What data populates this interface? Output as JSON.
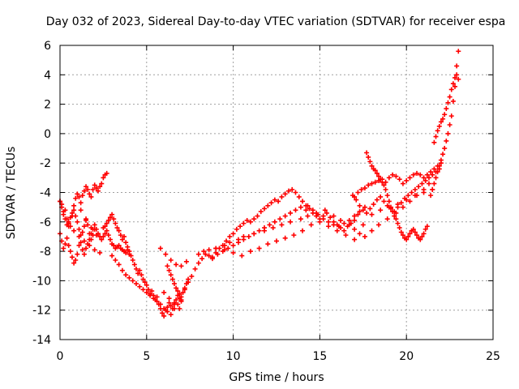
{
  "chart_data": {
    "type": "scatter",
    "title": "Day 032 of 2023, Sidereal Day-to-day VTEC variation (SDTVAR) for receiver espa",
    "xlabel": "GPS time / hours",
    "ylabel": "SDTVAR / TECUs",
    "xlim": [
      0,
      25
    ],
    "ylim": [
      -14,
      6
    ],
    "xticks": [
      0,
      5,
      10,
      15,
      20,
      25
    ],
    "xtick_labels": [
      "0",
      "5",
      "10",
      "15",
      "20",
      "25"
    ],
    "yticks": [
      -14,
      -12,
      -10,
      -8,
      -6,
      -4,
      -2,
      0,
      2,
      4,
      6
    ],
    "ytick_labels": [
      "-14",
      "-12",
      "-10",
      "-8",
      "-6",
      "-4",
      "-2",
      "0",
      "2",
      "4",
      "6"
    ],
    "grid": true,
    "marker": "+",
    "color": "#ff0000",
    "series": [
      {
        "name": "SDTVAR",
        "x": [
          0.0,
          0.1,
          0.2,
          0.3,
          0.4,
          0.5,
          0.6,
          0.7,
          0.8,
          0.9,
          1.0,
          1.1,
          1.2,
          1.3,
          1.4,
          1.5,
          1.6,
          1.7,
          1.8,
          1.9,
          2.0,
          2.1,
          2.2,
          2.3,
          2.4,
          2.5,
          2.6,
          2.7,
          0.0,
          0.1,
          0.2,
          0.3,
          0.4,
          0.5,
          0.6,
          0.7,
          0.8,
          0.9,
          1.0,
          1.1,
          1.2,
          1.3,
          1.4,
          1.5,
          1.6,
          1.7,
          1.8,
          1.9,
          2.0,
          2.1,
          2.2,
          2.3,
          2.4,
          2.5,
          2.6,
          2.7,
          2.8,
          2.9,
          3.0,
          3.1,
          3.2,
          3.3,
          3.4,
          3.5,
          3.6,
          3.7,
          3.8,
          3.9,
          4.0,
          0.0,
          0.1,
          0.2,
          0.3,
          0.4,
          0.5,
          0.6,
          0.7,
          0.8,
          0.9,
          1.0,
          1.1,
          1.2,
          1.3,
          1.4,
          1.5,
          1.6,
          1.7,
          1.8,
          1.9,
          2.0,
          2.5,
          2.6,
          2.7,
          2.8,
          2.9,
          3.0,
          3.1,
          3.2,
          3.3,
          3.4,
          3.5,
          3.6,
          3.7,
          3.8,
          3.9,
          4.0,
          4.1,
          4.2,
          4.3,
          4.4,
          4.5,
          4.6,
          4.7,
          4.8,
          4.9,
          5.0,
          5.1,
          5.2,
          5.3,
          5.4,
          5.5,
          5.6,
          5.7,
          5.8,
          5.9,
          6.0,
          6.1,
          6.2,
          6.3,
          6.4,
          6.5,
          6.6,
          6.7,
          6.8,
          6.9,
          7.0,
          7.1,
          7.2,
          7.3,
          7.4,
          3.0,
          3.2,
          3.4,
          3.6,
          3.8,
          4.0,
          4.2,
          4.4,
          4.6,
          4.8,
          5.0,
          5.2,
          5.4,
          5.6,
          5.8,
          6.0,
          6.2,
          6.4,
          6.6,
          6.8,
          7.0,
          6.2,
          6.3,
          6.4,
          6.5,
          6.6,
          6.7,
          6.8,
          6.9,
          7.0,
          7.2,
          7.4,
          7.6,
          7.8,
          8.0,
          8.2,
          8.4,
          8.6,
          8.8,
          9.0,
          9.2,
          9.4,
          9.6,
          9.8,
          10.0,
          10.2,
          10.4,
          10.6,
          10.8,
          11.0,
          11.2,
          11.4,
          11.6,
          11.8,
          12.0,
          12.2,
          12.4,
          12.6,
          12.8,
          13.0,
          13.2,
          13.4,
          13.6,
          13.8,
          14.0,
          14.2,
          14.4,
          14.6,
          14.8,
          15.0,
          15.2,
          15.4,
          15.6,
          15.8,
          16.0,
          16.2,
          16.4,
          16.6,
          16.8,
          17.0,
          17.2,
          8.0,
          8.3,
          8.6,
          9.0,
          9.5,
          10.0,
          10.5,
          11.0,
          11.5,
          12.0,
          12.5,
          13.0,
          13.5,
          14.0,
          14.5,
          15.0,
          15.5,
          16.0,
          16.5,
          17.0,
          17.5,
          18.0,
          18.5,
          19.0,
          19.5,
          20.0,
          20.5,
          21.0,
          21.5,
          17.0,
          17.2,
          17.4,
          17.6,
          17.8,
          18.0,
          18.2,
          18.4,
          18.6,
          18.8,
          19.0,
          19.2,
          19.4,
          19.6,
          19.8,
          20.0,
          20.2,
          20.4,
          20.6,
          20.8,
          21.0,
          21.2,
          21.4,
          21.6,
          21.8,
          22.0,
          16.9,
          17.1,
          17.3,
          17.5,
          17.7,
          17.9,
          18.1,
          18.3,
          18.5,
          18.7,
          18.9,
          19.1,
          19.3,
          19.5,
          19.7,
          19.9,
          20.1,
          20.3,
          20.5,
          20.7,
          20.9,
          21.1,
          21.3,
          21.5,
          21.7,
          21.9,
          17.7,
          17.8,
          17.9,
          18.0,
          18.1,
          18.2,
          18.3,
          18.4,
          18.5,
          18.6,
          18.7,
          18.8,
          18.9,
          19.0,
          19.1,
          19.2,
          19.3,
          19.4,
          19.5,
          19.6,
          19.7,
          19.8,
          19.9,
          20.0,
          20.1,
          20.2,
          20.3,
          20.4,
          20.5,
          20.6,
          20.7,
          20.8,
          20.9,
          21.0,
          21.1,
          21.2,
          21.4,
          21.5,
          21.6,
          21.7,
          21.8,
          21.9,
          22.0,
          22.1,
          22.2,
          22.3,
          22.4,
          22.5,
          22.6,
          22.7,
          22.8,
          22.9,
          23.0,
          21.6,
          21.7,
          21.8,
          21.9,
          22.0,
          22.1,
          22.2,
          22.3,
          22.4,
          22.5,
          22.6,
          22.7,
          22.8,
          22.9,
          23.0,
          9.0,
          9.5,
          9.8,
          10.3,
          10.6,
          11.2,
          11.8,
          12.3,
          12.8,
          13.3,
          13.9,
          14.3,
          14.8,
          15.3,
          15.8,
          16.2,
          16.7,
          17.0,
          17.3,
          17.6,
          18.0,
          18.4,
          18.9,
          19.4,
          19.8,
          20.2,
          20.6,
          21.0,
          21.3,
          14.3,
          14.6,
          14.9,
          15.2,
          15.5,
          15.8,
          16.1,
          16.4,
          16.7,
          17.0,
          17.3,
          17.6,
          8.8,
          9.1,
          9.4,
          9.7,
          10.0,
          10.3,
          10.6,
          10.9,
          11.2,
          11.5,
          11.8,
          12.1,
          12.4,
          12.7,
          13.0,
          13.3,
          13.6,
          13.9,
          14.2,
          1.2,
          1.5,
          1.8,
          2.1,
          0.5,
          0.8,
          1.1,
          1.4,
          1.7,
          2.0,
          2.3,
          5.8,
          6.1,
          6.4,
          6.7,
          7.0,
          7.3,
          6.0,
          6.3,
          6.6,
          6.9
        ],
        "y": [
          -4.6,
          -4.8,
          -5.3,
          -5.2,
          -5.8,
          -6.1,
          -6.3,
          -5.6,
          -4.9,
          -4.4,
          -4.1,
          -4.3,
          -4.7,
          -4.2,
          -3.9,
          -3.6,
          -3.8,
          -4.1,
          -4.3,
          -3.8,
          -3.5,
          -3.7,
          -3.9,
          -3.6,
          -3.4,
          -3.0,
          -2.8,
          -2.7,
          -6.8,
          -7.3,
          -7.8,
          -7.5,
          -7.1,
          -7.6,
          -8.0,
          -8.4,
          -8.8,
          -8.6,
          -8.2,
          -7.6,
          -7.4,
          -7.9,
          -8.2,
          -7.8,
          -7.5,
          -7.2,
          -6.8,
          -6.5,
          -6.2,
          -6.5,
          -6.8,
          -7.0,
          -7.2,
          -7.0,
          -6.8,
          -6.6,
          -6.9,
          -7.2,
          -7.5,
          -7.6,
          -7.8,
          -7.7,
          -7.6,
          -7.8,
          -7.9,
          -8.0,
          -8.1,
          -7.9,
          -8.2,
          -4.6,
          -5.0,
          -5.5,
          -5.8,
          -6.2,
          -6.0,
          -5.7,
          -5.4,
          -5.2,
          -5.6,
          -6.0,
          -6.5,
          -6.9,
          -6.7,
          -6.3,
          -5.9,
          -6.2,
          -6.8,
          -7.2,
          -6.9,
          -6.5,
          -6.4,
          -6.3,
          -6.1,
          -5.9,
          -5.7,
          -5.5,
          -5.8,
          -6.1,
          -6.4,
          -6.6,
          -6.9,
          -7.2,
          -7.0,
          -7.4,
          -7.7,
          -8.0,
          -8.3,
          -8.6,
          -8.9,
          -9.2,
          -9.5,
          -9.3,
          -9.6,
          -9.9,
          -10.1,
          -10.3,
          -10.6,
          -10.9,
          -10.7,
          -11.0,
          -11.3,
          -11.1,
          -11.6,
          -11.9,
          -12.2,
          -12.4,
          -12.0,
          -11.8,
          -11.5,
          -11.7,
          -11.9,
          -11.6,
          -11.3,
          -11.0,
          -11.2,
          -11.4,
          -10.8,
          -10.5,
          -10.2,
          -9.9,
          -8.3,
          -8.6,
          -8.9,
          -9.3,
          -9.6,
          -9.8,
          -10.0,
          -10.2,
          -10.4,
          -10.6,
          -10.8,
          -11.0,
          -11.2,
          -11.4,
          -11.6,
          -11.9,
          -12.1,
          -12.3,
          -11.9,
          -11.6,
          -11.3,
          -9.0,
          -9.3,
          -9.6,
          -9.9,
          -10.2,
          -10.5,
          -10.7,
          -10.9,
          -11.1,
          -10.6,
          -10.1,
          -9.7,
          -9.2,
          -8.8,
          -8.5,
          -8.2,
          -8.3,
          -8.5,
          -8.1,
          -7.8,
          -7.6,
          -7.3,
          -7.0,
          -6.8,
          -6.5,
          -6.3,
          -6.1,
          -5.9,
          -6.0,
          -5.8,
          -5.6,
          -5.3,
          -5.1,
          -4.9,
          -4.7,
          -4.5,
          -4.6,
          -4.3,
          -4.1,
          -3.9,
          -3.8,
          -4.0,
          -4.3,
          -4.6,
          -4.9,
          -5.1,
          -5.4,
          -5.6,
          -5.8,
          -5.6,
          -5.4,
          -5.7,
          -6.0,
          -6.2,
          -6.4,
          -6.6,
          -6.3,
          -6.1,
          -5.9,
          -5.5,
          -8.2,
          -8.0,
          -7.9,
          -7.8,
          -7.9,
          -8.1,
          -8.3,
          -8.0,
          -7.8,
          -7.5,
          -7.3,
          -7.1,
          -6.9,
          -6.6,
          -6.2,
          -6.0,
          -6.3,
          -6.6,
          -6.9,
          -7.2,
          -6.2,
          -5.5,
          -5.2,
          -5.0,
          -4.8,
          -4.5,
          -4.2,
          -4.0,
          -3.8,
          -4.3,
          -4.0,
          -3.8,
          -3.7,
          -3.5,
          -3.4,
          -3.3,
          -3.2,
          -3.1,
          -3.3,
          -3.0,
          -2.8,
          -2.9,
          -3.1,
          -3.4,
          -3.2,
          -3.0,
          -2.8,
          -2.7,
          -2.8,
          -3.0,
          -2.8,
          -2.6,
          -2.4,
          -2.2,
          -2.0,
          -4.2,
          -4.5,
          -4.9,
          -5.2,
          -5.4,
          -5.1,
          -4.8,
          -4.5,
          -4.3,
          -4.6,
          -4.9,
          -5.1,
          -5.3,
          -5.0,
          -4.7,
          -4.4,
          -4.2,
          -4.0,
          -3.8,
          -3.6,
          -3.4,
          -3.2,
          -3.0,
          -2.8,
          -2.6,
          -2.4,
          -1.3,
          -1.6,
          -1.9,
          -2.2,
          -2.4,
          -2.5,
          -2.7,
          -2.9,
          -3.1,
          -3.3,
          -3.5,
          -3.8,
          -4.2,
          -4.6,
          -5.0,
          -5.3,
          -5.6,
          -5.8,
          -6.1,
          -6.4,
          -6.7,
          -6.9,
          -7.1,
          -7.2,
          -7.0,
          -6.8,
          -6.6,
          -6.5,
          -6.7,
          -6.9,
          -7.1,
          -7.2,
          -7.0,
          -6.8,
          -6.5,
          -6.3,
          -4.2,
          -3.8,
          -3.4,
          -3.0,
          -2.6,
          -2.2,
          -1.8,
          -1.4,
          -1.0,
          -0.5,
          0.0,
          0.6,
          1.2,
          2.2,
          3.2,
          4.6,
          5.6,
          -0.6,
          -0.2,
          0.2,
          0.5,
          0.8,
          1.0,
          1.3,
          1.7,
          2.1,
          2.5,
          3.0,
          3.4,
          3.8,
          4.0,
          3.7,
          -7.8,
          -7.6,
          -7.4,
          -7.2,
          -7.0,
          -6.8,
          -6.6,
          -6.4,
          -6.2,
          -6.0,
          -5.8,
          -5.6,
          -5.4,
          -5.2,
          -5.6,
          -5.9,
          -6.2,
          -6.5,
          -6.8,
          -7.0,
          -6.6,
          -6.2,
          -5.8,
          -5.4,
          -5.0,
          -4.6,
          -4.2,
          -3.8,
          -3.4,
          -4.9,
          -5.2,
          -5.5,
          -5.8,
          -6.0,
          -6.2,
          -6.3,
          -6.1,
          -5.9,
          -5.6,
          -5.3,
          -5.0,
          -8.4,
          -8.2,
          -8.0,
          -7.8,
          -7.6,
          -7.4,
          -7.2,
          -7.0,
          -6.8,
          -6.6,
          -6.4,
          -6.2,
          -6.0,
          -5.8,
          -5.6,
          -5.4,
          -5.2,
          -5.0,
          -5.2,
          -5.2,
          -5.8,
          -6.4,
          -6.9,
          -6.3,
          -6.6,
          -7.0,
          -7.3,
          -7.6,
          -7.9,
          -8.1,
          -7.8,
          -8.2,
          -8.6,
          -8.9,
          -9.0,
          -8.7,
          -10.8,
          -11.2,
          -11.5,
          -11.9
        ]
      }
    ]
  }
}
